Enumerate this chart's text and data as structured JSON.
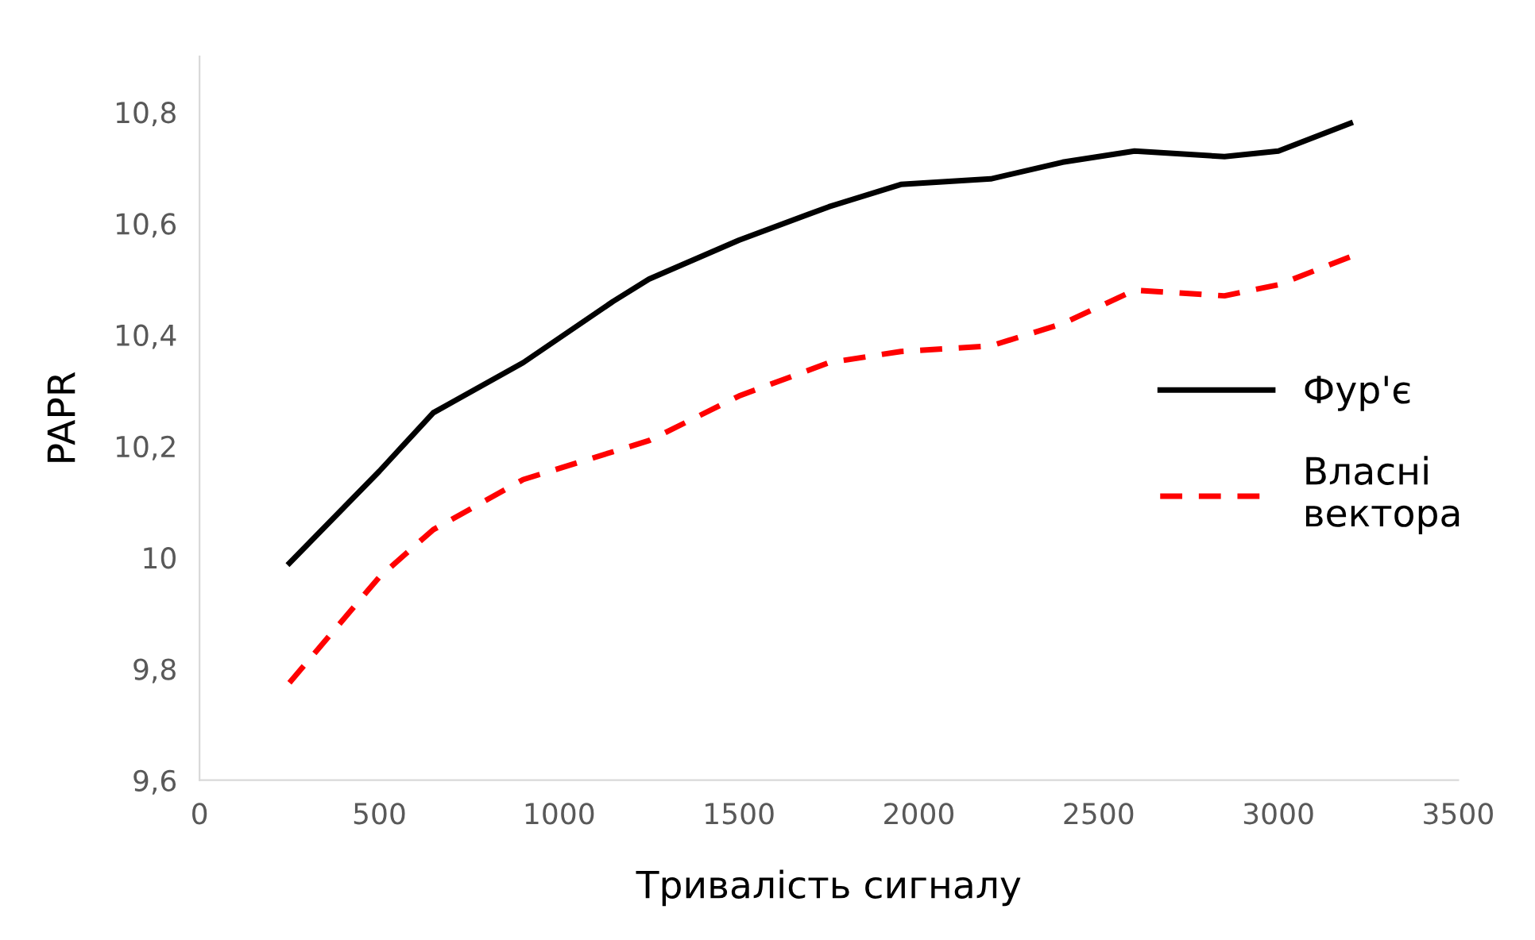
{
  "chart_data": {
    "type": "line",
    "xlabel": "Тривалість сигналу",
    "ylabel": "PAPR",
    "xlim": [
      0,
      3500
    ],
    "xticks": [
      0,
      500,
      1000,
      1500,
      2000,
      2500,
      3000,
      3500
    ],
    "ylim": [
      9.6,
      10.9
    ],
    "yticks": [
      {
        "value": 9.6,
        "label": "9,6"
      },
      {
        "value": 9.8,
        "label": "9,8"
      },
      10,
      {
        "value": 10.2,
        "label": "10,2"
      },
      {
        "value": 10.4,
        "label": "10,4"
      },
      {
        "value": 10.6,
        "label": "10,6"
      },
      {
        "value": 10.8,
        "label": "10,8"
      }
    ],
    "grid": false,
    "legend": "right",
    "x": [
      250,
      500,
      650,
      900,
      1150,
      1250,
      1500,
      1750,
      1950,
      2200,
      2400,
      2600,
      2850,
      3000,
      3200
    ],
    "series": [
      {
        "name": "Фур'є",
        "color": "#000000",
        "line_style": "solid",
        "values": [
          9.99,
          10.155,
          10.26,
          10.35,
          10.46,
          10.5,
          10.57,
          10.63,
          10.67,
          10.68,
          10.71,
          10.73,
          10.72,
          10.73,
          10.78
        ]
      },
      {
        "name": "Власні\nвектора",
        "color": "#ff0000",
        "line_style": "dashed",
        "values": [
          9.775,
          9.965,
          10.05,
          10.14,
          10.19,
          10.21,
          10.29,
          10.35,
          10.37,
          10.38,
          10.42,
          10.48,
          10.47,
          10.49,
          10.54
        ]
      }
    ]
  }
}
